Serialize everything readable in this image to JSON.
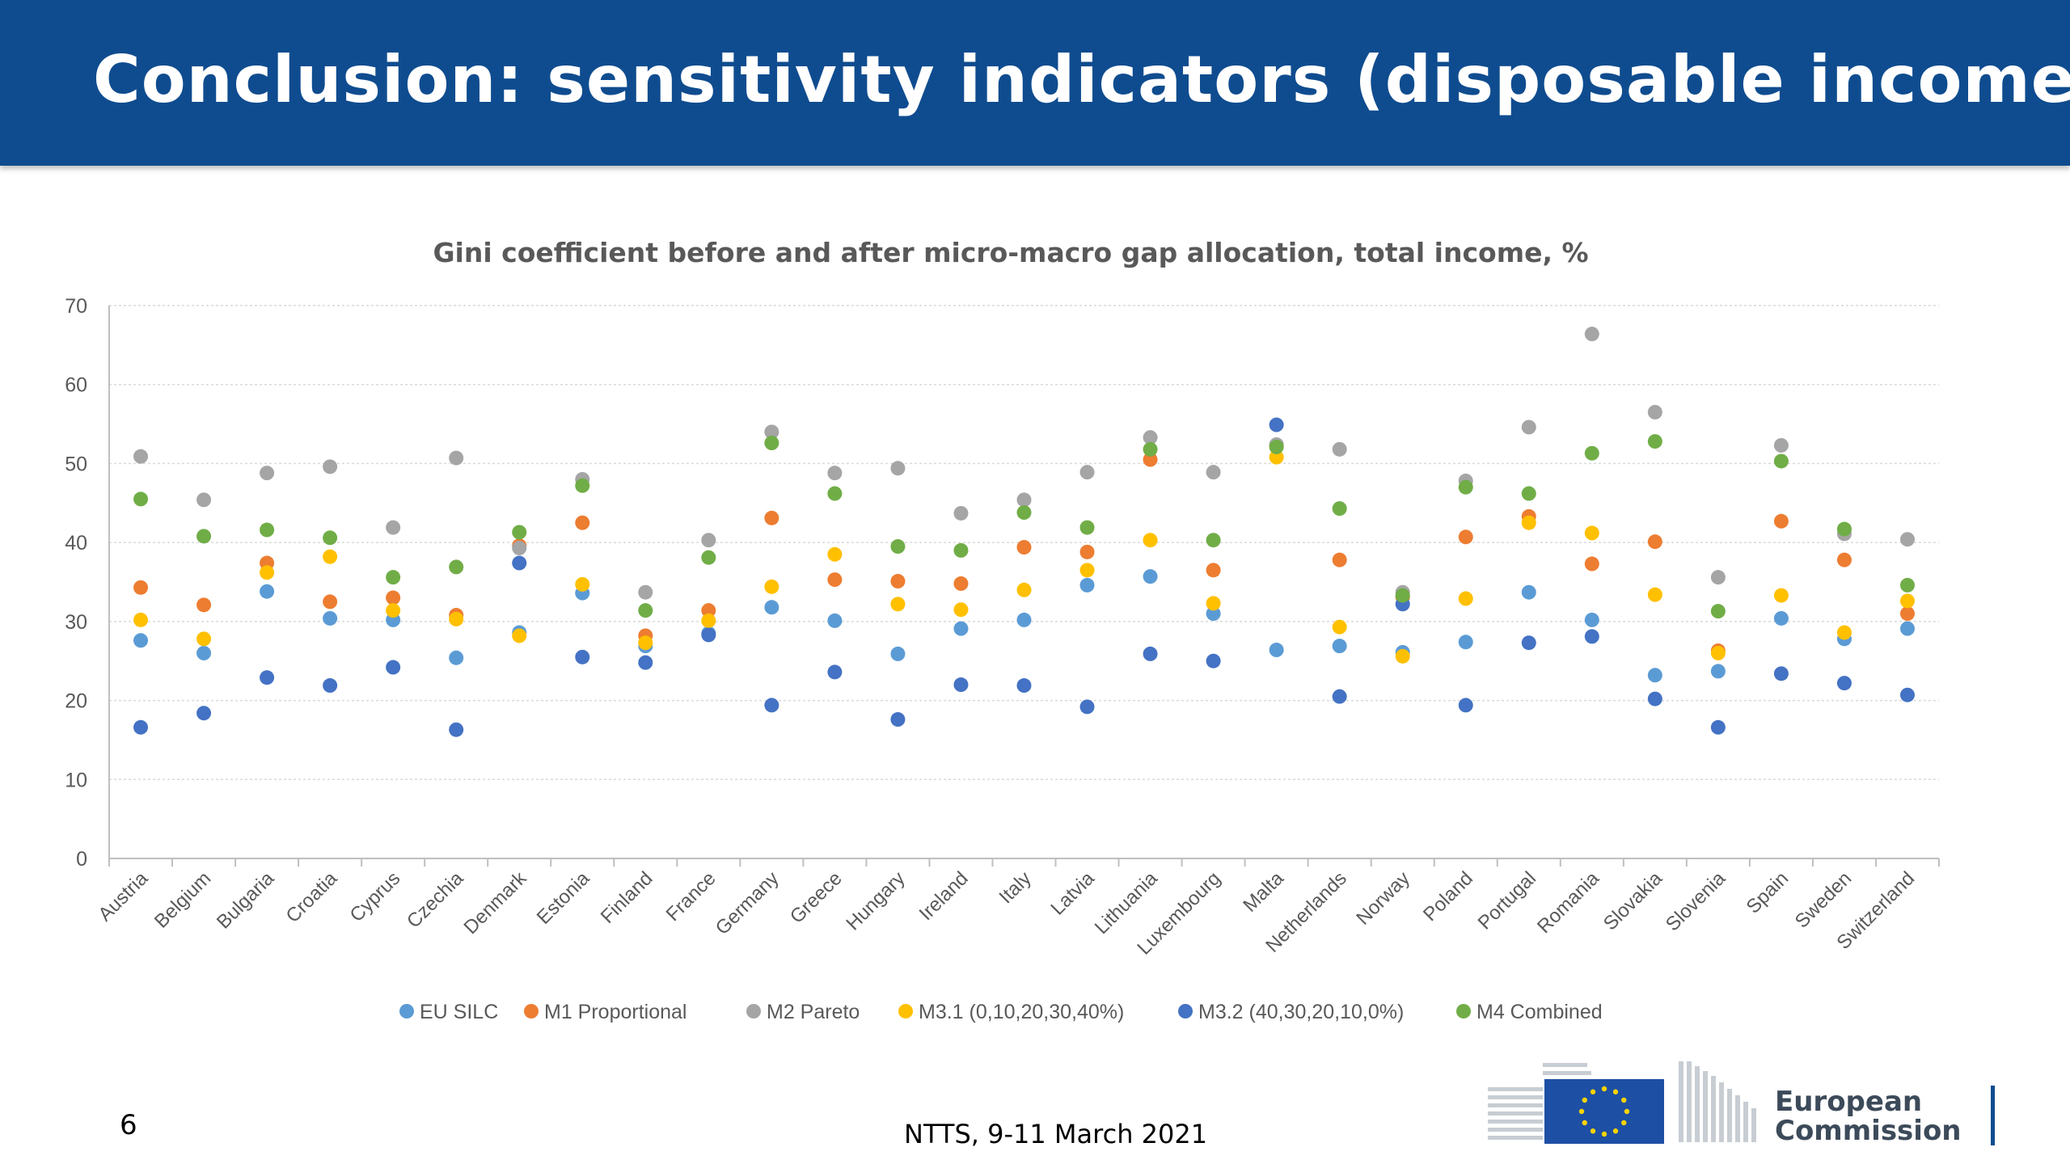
{
  "header": {
    "title": "Conclusion: sensitivity indicators (disposable income)"
  },
  "footer": {
    "page_number": "6",
    "event": "NTTS, 9-11 March 2021"
  },
  "logo": {
    "line1": "European",
    "line2": "Commission"
  },
  "colors": {
    "header_bg": "#0f4c8f",
    "eu_silc": "#5b9bd5",
    "m1": "#ed7d31",
    "m2": "#a5a5a5",
    "m31": "#ffc000",
    "m32": "#4472c4",
    "m4": "#70ad47"
  },
  "chart_data": {
    "type": "scatter",
    "title": "Gini coefficient before and after micro-macro gap allocation, total income, %",
    "ylim": [
      0,
      70
    ],
    "yticks": [
      0,
      10,
      20,
      30,
      40,
      50,
      60,
      70
    ],
    "grid": true,
    "legend_position": "bottom",
    "categories": [
      "Austria",
      "Belgium",
      "Bulgaria",
      "Croatia",
      "Cyprus",
      "Czechia",
      "Denmark",
      "Estonia",
      "Finland",
      "France",
      "Germany",
      "Greece",
      "Hungary",
      "Ireland",
      "Italy",
      "Latvia",
      "Lithuania",
      "Luxembourg",
      "Malta",
      "Netherlands",
      "Norway",
      "Poland",
      "Portugal",
      "Romania",
      "Slovakia",
      "Slovenia",
      "Spain",
      "Sweden",
      "Switzerland"
    ],
    "series": [
      {
        "name": "EU SILC",
        "color": "#5b9bd5",
        "values": [
          27.6,
          26.0,
          33.8,
          30.4,
          30.2,
          25.4,
          28.6,
          33.6,
          26.9,
          28.5,
          31.8,
          30.1,
          25.9,
          29.1,
          30.2,
          34.6,
          35.7,
          31.0,
          26.4,
          26.9,
          26.1,
          27.4,
          33.7,
          30.2,
          23.2,
          23.7,
          30.4,
          27.8,
          29.1
        ]
      },
      {
        "name": "M1 Proportional",
        "color": "#ed7d31",
        "values": [
          34.3,
          32.1,
          37.4,
          32.5,
          33.0,
          30.8,
          39.6,
          42.5,
          28.2,
          31.4,
          43.1,
          35.3,
          35.1,
          34.8,
          39.4,
          38.8,
          50.5,
          36.5,
          52.3,
          37.8,
          33.1,
          40.7,
          43.3,
          37.3,
          40.1,
          26.3,
          42.7,
          37.8,
          31.0
        ]
      },
      {
        "name": "M2 Pareto",
        "color": "#a5a5a5",
        "values": [
          50.9,
          45.4,
          48.8,
          49.6,
          41.9,
          50.7,
          39.3,
          48.0,
          33.7,
          40.3,
          54.0,
          48.8,
          49.4,
          43.7,
          45.4,
          48.9,
          53.3,
          48.9,
          52.4,
          51.8,
          33.7,
          47.8,
          54.6,
          66.4,
          56.5,
          35.6,
          52.3,
          41.1,
          40.4
        ]
      },
      {
        "name": "M3.1 (0,10,20,30,40%)",
        "color": "#ffc000",
        "values": [
          30.2,
          27.8,
          36.2,
          38.2,
          31.4,
          30.3,
          28.2,
          34.7,
          27.3,
          30.1,
          34.4,
          38.5,
          32.2,
          31.5,
          34.0,
          36.5,
          40.3,
          32.3,
          50.8,
          29.3,
          25.6,
          32.9,
          42.5,
          41.2,
          33.4,
          26.0,
          33.3,
          28.6,
          32.6
        ]
      },
      {
        "name": "M3.2 (40,30,20,10,0%)",
        "color": "#4472c4",
        "values": [
          16.6,
          18.4,
          22.9,
          21.9,
          24.2,
          16.3,
          37.4,
          25.5,
          24.8,
          28.3,
          19.4,
          23.6,
          17.6,
          22.0,
          21.9,
          19.2,
          25.9,
          25.0,
          54.9,
          20.5,
          32.2,
          19.4,
          27.3,
          28.1,
          20.2,
          16.6,
          23.4,
          22.2,
          20.7
        ]
      },
      {
        "name": "M4 Combined",
        "color": "#70ad47",
        "values": [
          45.5,
          40.8,
          41.6,
          40.6,
          35.6,
          36.9,
          41.3,
          47.2,
          31.4,
          38.1,
          52.6,
          46.2,
          39.5,
          39.0,
          43.8,
          41.9,
          51.8,
          40.3,
          52.1,
          44.3,
          33.3,
          47.0,
          46.2,
          51.3,
          52.8,
          31.3,
          50.3,
          41.7,
          34.6
        ]
      }
    ]
  }
}
